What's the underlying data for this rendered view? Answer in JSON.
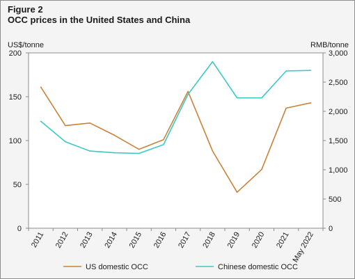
{
  "figure": {
    "label": "Figure 2",
    "title": "OCC prices in the United States and China"
  },
  "chart_data": {
    "type": "line",
    "title": "OCC prices in the United States and China",
    "categories": [
      "2011",
      "2012",
      "2013",
      "2014",
      "2015",
      "2016",
      "2017",
      "2018",
      "2019",
      "2020",
      "2021",
      "May 2022"
    ],
    "left_axis": {
      "label": "US$/tonne",
      "ylim": [
        0,
        200
      ],
      "ticks": [
        0,
        50,
        100,
        150,
        200
      ]
    },
    "right_axis": {
      "label": "RMB/tonne",
      "ylim": [
        0,
        3000
      ],
      "ticks": [
        0,
        500,
        1000,
        1500,
        2000,
        2500,
        3000
      ],
      "tick_labels": [
        "0",
        "500",
        "1,000",
        "1,500",
        "2,000",
        "2,500",
        "3,000"
      ]
    },
    "series": [
      {
        "name": "US domestic OCC",
        "axis": "left",
        "color": "#c8823a",
        "values": [
          161,
          117,
          120,
          106,
          90,
          101,
          156,
          88,
          41,
          67,
          137,
          143
        ]
      },
      {
        "name": "Chinese domestic OCC",
        "axis": "right",
        "color": "#3cc8c4",
        "values": [
          1830,
          1480,
          1320,
          1290,
          1280,
          1430,
          2290,
          2850,
          2230,
          2230,
          2690,
          2700
        ]
      }
    ],
    "legend": "bottom",
    "grid": false
  }
}
